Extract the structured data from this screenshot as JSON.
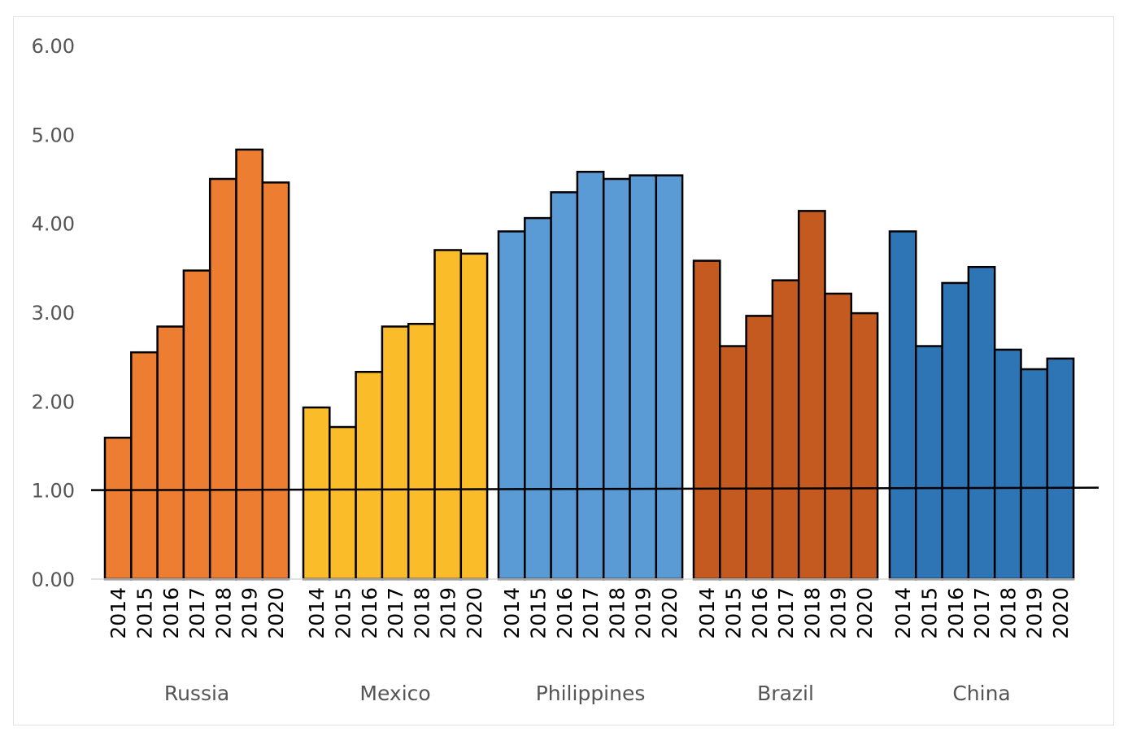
{
  "chart_data": {
    "type": "bar",
    "title": "",
    "xlabel": "",
    "ylabel": "",
    "ylim": [
      0,
      6
    ],
    "yticks": [
      "0.00",
      "1.00",
      "2.00",
      "3.00",
      "4.00",
      "5.00",
      "6.00"
    ],
    "reference_line": 1.0,
    "grid": false,
    "legend": "none",
    "categories": [
      "2014",
      "2015",
      "2016",
      "2017",
      "2018",
      "2019",
      "2020"
    ],
    "groups": [
      {
        "label": "Russia",
        "color": "#ED7D31",
        "values": [
          1.59,
          2.55,
          2.84,
          3.47,
          4.5,
          4.83,
          4.46
        ]
      },
      {
        "label": "Mexico",
        "color": "#FBBC2A",
        "values": [
          1.93,
          1.71,
          2.33,
          2.84,
          2.87,
          3.7,
          3.66
        ]
      },
      {
        "label": "Philippines",
        "color": "#5B9BD5",
        "values": [
          3.91,
          4.06,
          4.35,
          4.58,
          4.5,
          4.54,
          4.54
        ]
      },
      {
        "label": "Brazil",
        "color": "#C55A20",
        "values": [
          3.58,
          2.62,
          2.96,
          3.36,
          4.14,
          3.21,
          2.99
        ]
      },
      {
        "label": "China",
        "color": "#2E75B6",
        "values": [
          3.91,
          2.62,
          3.33,
          3.51,
          2.58,
          2.36,
          2.48
        ]
      }
    ]
  }
}
